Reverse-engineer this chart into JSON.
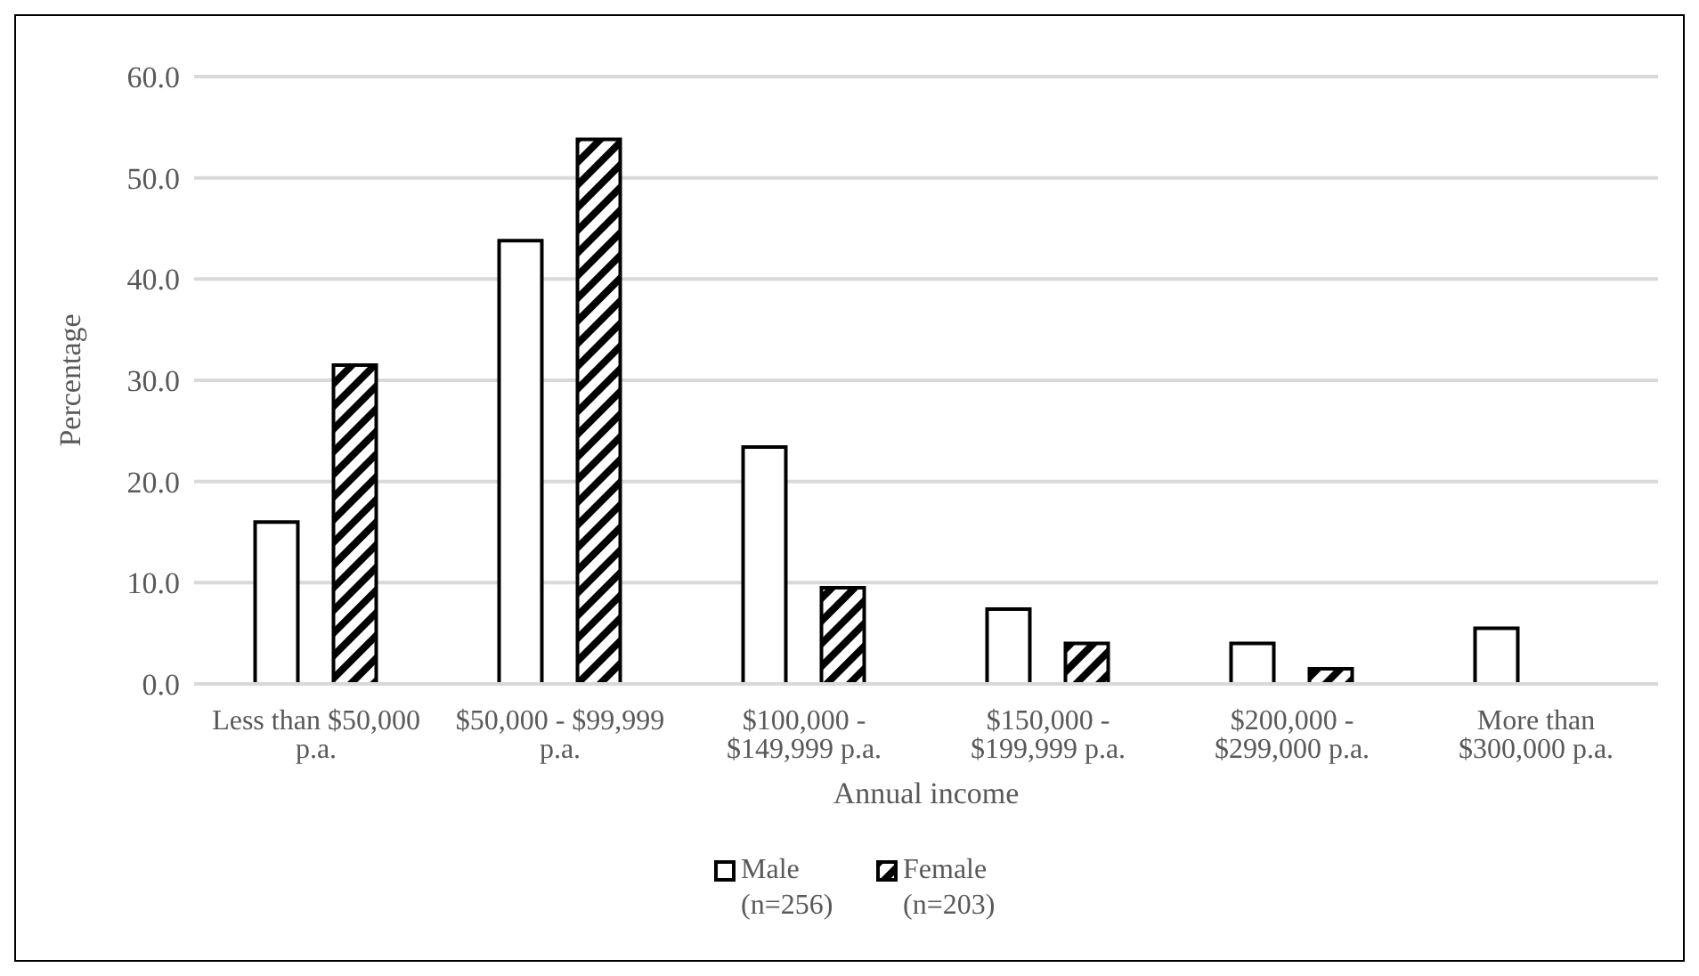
{
  "chart_data": {
    "type": "bar",
    "xlabel": "Annual income",
    "ylabel": "Percentage",
    "categories": [
      "Less than $50,000 p.a.",
      "$50,000 - $99,999 p.a.",
      "$100,000 - $149,999 p.a.",
      "$150,000 - $199,999 p.a.",
      "$200,000 - $299,000 p.a.",
      "More than $300,000 p.a."
    ],
    "series": [
      {
        "name": "Male (n=256)",
        "color": "#ffffff",
        "values": [
          16.0,
          43.8,
          23.4,
          7.4,
          4.0,
          5.5
        ]
      },
      {
        "name": "Female (n=203)",
        "color": "#000000",
        "values": [
          31.5,
          53.8,
          9.5,
          4.0,
          1.5,
          0
        ]
      }
    ],
    "ylim": [
      0,
      60
    ],
    "yticks": [
      {
        "value": 0,
        "label": "0.0"
      },
      {
        "value": 10,
        "label": "10.0"
      },
      {
        "value": 20,
        "label": "20.0"
      },
      {
        "value": 30,
        "label": "30.0"
      },
      {
        "value": 40,
        "label": "40.0"
      },
      {
        "value": 50,
        "label": "50.0"
      },
      {
        "value": 60,
        "label": "60.0"
      }
    ],
    "grid": "y",
    "legend": "bottom"
  }
}
